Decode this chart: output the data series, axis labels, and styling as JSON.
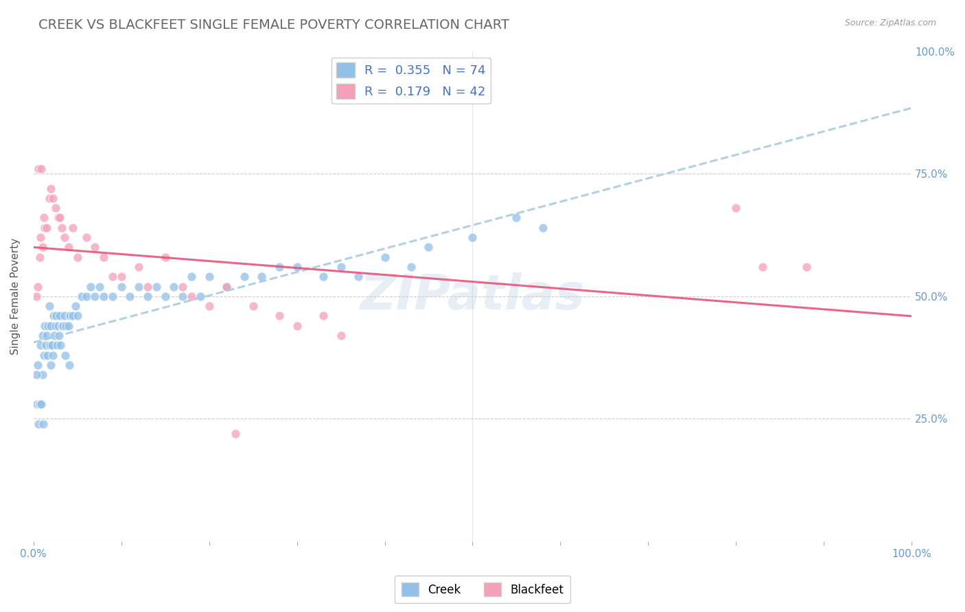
{
  "title": "CREEK VS BLACKFEET SINGLE FEMALE POVERTY CORRELATION CHART",
  "source": "Source: ZipAtlas.com",
  "ylabel": "Single Female Poverty",
  "legend_labels": [
    "Creek",
    "Blackfeet"
  ],
  "creek_R": 0.355,
  "creek_N": 74,
  "blackfeet_R": 0.179,
  "blackfeet_N": 42,
  "creek_color": "#92C0E8",
  "blackfeet_color": "#F4A0B8",
  "creek_line_color": "#7BAFD4",
  "blackfeet_line_color": "#E8547A",
  "background_color": "#FFFFFF",
  "grid_color": "#CCCCCC",
  "title_color": "#666666",
  "axis_label_color": "#6699CC",
  "right_label_color": "#6699CC",
  "watermark": "ZIPatlas",
  "creek_x": [
    0.5,
    0.8,
    1.0,
    1.0,
    1.2,
    1.3,
    1.4,
    1.5,
    1.6,
    1.7,
    1.8,
    1.9,
    2.0,
    2.0,
    2.1,
    2.2,
    2.3,
    2.4,
    2.5,
    2.6,
    2.7,
    2.8,
    2.9,
    3.0,
    3.1,
    3.2,
    3.4,
    3.5,
    3.7,
    4.0,
    4.2,
    4.5,
    4.8,
    5.0,
    5.5,
    6.0,
    6.5,
    7.0,
    7.5,
    8.0,
    9.0,
    10.0,
    11.0,
    12.0,
    13.0,
    14.0,
    15.0,
    16.0,
    17.0,
    18.0,
    19.0,
    20.0,
    22.0,
    24.0,
    26.0,
    28.0,
    30.0,
    33.0,
    35.0,
    37.0,
    40.0,
    43.0,
    45.0,
    50.0,
    55.0,
    58.0,
    0.3,
    0.4,
    0.6,
    0.7,
    0.9,
    1.1,
    3.6,
    4.1
  ],
  "creek_y": [
    36.0,
    40.0,
    42.0,
    34.0,
    38.0,
    44.0,
    40.0,
    42.0,
    38.0,
    44.0,
    48.0,
    40.0,
    44.0,
    36.0,
    40.0,
    38.0,
    46.0,
    42.0,
    44.0,
    46.0,
    40.0,
    44.0,
    42.0,
    46.0,
    40.0,
    44.0,
    44.0,
    46.0,
    44.0,
    44.0,
    46.0,
    46.0,
    48.0,
    46.0,
    50.0,
    50.0,
    52.0,
    50.0,
    52.0,
    50.0,
    50.0,
    52.0,
    50.0,
    52.0,
    50.0,
    52.0,
    50.0,
    52.0,
    50.0,
    54.0,
    50.0,
    54.0,
    52.0,
    54.0,
    54.0,
    56.0,
    56.0,
    54.0,
    56.0,
    54.0,
    58.0,
    56.0,
    60.0,
    62.0,
    66.0,
    64.0,
    34.0,
    28.0,
    24.0,
    28.0,
    28.0,
    24.0,
    38.0,
    36.0
  ],
  "blackfeet_x": [
    0.3,
    0.5,
    0.7,
    0.8,
    1.0,
    1.2,
    1.3,
    1.5,
    1.8,
    2.0,
    2.2,
    2.5,
    2.8,
    3.0,
    3.2,
    3.5,
    4.0,
    4.5,
    5.0,
    6.0,
    7.0,
    8.0,
    9.0,
    10.0,
    12.0,
    13.0,
    15.0,
    17.0,
    18.0,
    20.0,
    22.0,
    25.0,
    28.0,
    30.0,
    33.0,
    35.0,
    80.0,
    83.0,
    88.0,
    0.6,
    0.9,
    23.0
  ],
  "blackfeet_y": [
    50.0,
    52.0,
    58.0,
    62.0,
    60.0,
    66.0,
    64.0,
    64.0,
    70.0,
    72.0,
    70.0,
    68.0,
    66.0,
    66.0,
    64.0,
    62.0,
    60.0,
    64.0,
    58.0,
    62.0,
    60.0,
    58.0,
    54.0,
    54.0,
    56.0,
    52.0,
    58.0,
    52.0,
    50.0,
    48.0,
    52.0,
    48.0,
    46.0,
    44.0,
    46.0,
    42.0,
    68.0,
    56.0,
    56.0,
    76.0,
    76.0,
    22.0
  ],
  "xtick_positions": [
    0,
    10,
    20,
    30,
    40,
    50,
    60,
    70,
    80,
    90,
    100
  ],
  "xtick_labels_show": [
    0,
    100
  ],
  "ytick_positions": [
    0,
    25,
    50,
    75,
    100
  ],
  "xlim": [
    0,
    100
  ],
  "ylim": [
    0,
    100
  ]
}
